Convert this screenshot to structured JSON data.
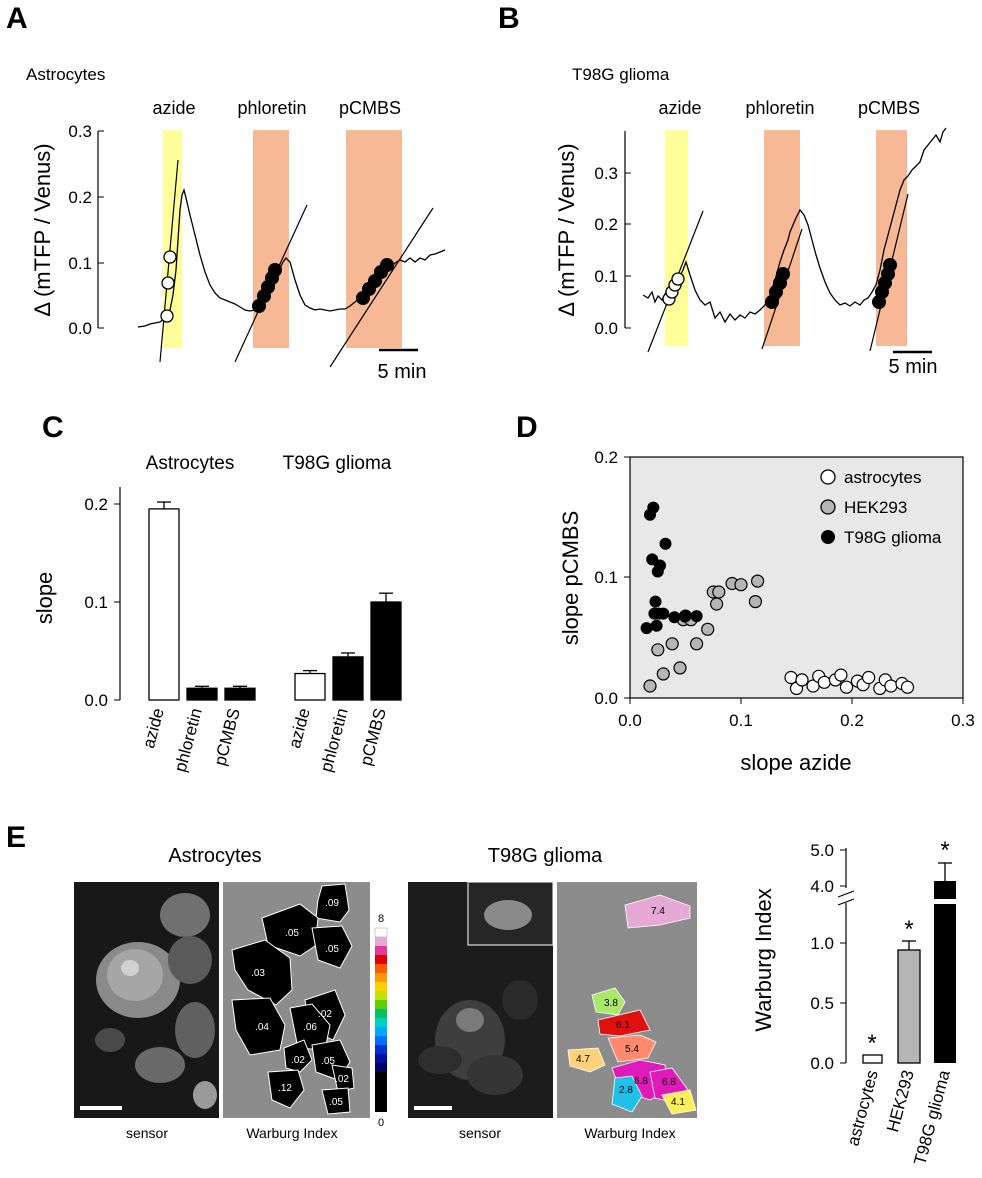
{
  "panels": {
    "A": {
      "letter": "A",
      "cell_label": "Astrocytes",
      "treatments": [
        "azide",
        "phloretin",
        "pCMBS"
      ],
      "ylabel": "Δ (mTFP / Venus)",
      "yticks": [
        "0.0",
        "0.1",
        "0.2",
        "0.3"
      ],
      "scalebar": "5 min"
    },
    "B": {
      "letter": "B",
      "cell_label": "T98G glioma",
      "treatments": [
        "azide",
        "phloretin",
        "pCMBS"
      ],
      "ylabel": "Δ (mTFP / Venus)",
      "yticks": [
        "0.0",
        "0.1",
        "0.2",
        "0.3"
      ],
      "scalebar": "5 min"
    },
    "C": {
      "letter": "C",
      "groups": [
        "Astrocytes",
        "T98G glioma"
      ],
      "ylabel": "slope",
      "yticks": [
        "0.0",
        "0.1",
        "0.2"
      ],
      "xlabels": [
        "azide",
        "phloretin",
        "pCMBS",
        "azide",
        "phloretin",
        "pCMBS"
      ]
    },
    "D": {
      "letter": "D",
      "xlabel": "slope azide",
      "ylabel": "slope pCMBS",
      "xticks": [
        "0.0",
        "0.1",
        "0.2",
        "0.3"
      ],
      "yticks": [
        "0.0",
        "0.1",
        "0.2"
      ],
      "legend": [
        "astrocytes",
        "HEK293",
        "T98G glioma"
      ]
    },
    "E": {
      "letter": "E",
      "astro_title": "Astrocytes",
      "glioma_title": "T98G glioma",
      "sensor_label": "sensor",
      "warburg_label": "Warburg Index",
      "colorbar_top": "8",
      "colorbar_bottom": "0",
      "astro_cell_values": [
        ".09",
        ".05",
        ".05",
        ".03",
        ".02",
        ".04",
        ".06",
        ".02",
        ".05",
        ".12",
        ".02",
        ".05"
      ],
      "glioma_cell_values": [
        "7.4",
        "3.8",
        "6.1",
        "5.4",
        "4.7",
        "6.8",
        "6.8",
        "2.8",
        "4.1"
      ],
      "bar_ylabel": "Warburg Index",
      "bar_yticks": [
        "0.0",
        "0.5",
        "1.0",
        "4.0",
        "5.0"
      ],
      "bar_xlabels": [
        "astrocytes",
        "HEK293",
        "T98G glioma"
      ],
      "significance": "*"
    }
  },
  "chart_data": [
    {
      "id": "A",
      "type": "line",
      "title": "Astrocytes",
      "ylabel": "Δ (mTFP / Venus)",
      "ylim": [
        0,
        0.3
      ],
      "time_min": [
        0,
        1,
        1.5,
        2,
        2.5,
        3,
        3.5,
        4,
        5,
        6,
        7,
        8,
        9,
        10,
        11,
        12,
        13,
        14,
        15,
        16,
        17,
        18,
        19,
        20,
        21,
        22,
        23,
        24
      ],
      "values": [
        0.005,
        0.008,
        0.015,
        0.05,
        0.12,
        0.2,
        0.21,
        0.17,
        0.1,
        0.06,
        0.04,
        0.03,
        0.03,
        0.05,
        0.09,
        0.12,
        0.1,
        0.04,
        0.035,
        0.03,
        0.035,
        0.045,
        0.065,
        0.085,
        0.095,
        0.1,
        0.105,
        0.12
      ],
      "points_azide": [
        0.02,
        0.07,
        0.11
      ],
      "points_phloretin": [
        0.03,
        0.05,
        0.07,
        0.09
      ],
      "points_pCMBS": [
        0.045,
        0.06,
        0.075,
        0.09
      ]
    },
    {
      "id": "B",
      "type": "line",
      "title": "T98G glioma",
      "ylabel": "Δ (mTFP / Venus)",
      "ylim": [
        0,
        0.35
      ],
      "time_min": [
        0,
        1,
        2,
        3,
        4,
        5,
        6,
        7,
        8,
        9,
        10,
        11,
        12,
        13,
        14,
        15,
        16,
        17,
        18,
        19,
        20,
        21,
        22,
        23,
        24
      ],
      "values": [
        0.065,
        0.05,
        0.07,
        0.06,
        0.1,
        0.08,
        0.03,
        0.01,
        0.02,
        0.04,
        0.05,
        0.1,
        0.2,
        0.2,
        0.15,
        0.09,
        0.04,
        0.03,
        0.02,
        0.06,
        0.13,
        0.27,
        0.29,
        0.33,
        0.37
      ],
      "points_azide": [
        0.06,
        0.08,
        0.1
      ],
      "points_phloretin": [
        0.05,
        0.08,
        0.11
      ],
      "points_pCMBS": [
        0.05,
        0.08,
        0.11,
        0.13
      ]
    },
    {
      "id": "C",
      "type": "bar",
      "ylabel": "slope",
      "ylim": [
        0,
        0.21
      ],
      "categories": [
        "azide",
        "phloretin",
        "pCMBS",
        "azide",
        "phloretin",
        "pCMBS"
      ],
      "groups": [
        "Astrocytes",
        "Astrocytes",
        "Astrocytes",
        "T98G glioma",
        "T98G glioma",
        "T98G glioma"
      ],
      "values": [
        0.195,
        0.012,
        0.012,
        0.027,
        0.044,
        0.1
      ],
      "errors": [
        0.007,
        0.002,
        0.002,
        0.003,
        0.004,
        0.009
      ],
      "fills": [
        "#ffffff",
        "#000000",
        "#000000",
        "#ffffff",
        "#000000",
        "#000000"
      ]
    },
    {
      "id": "D",
      "type": "scatter",
      "xlabel": "slope azide",
      "ylabel": "slope pCMBS",
      "xlim": [
        0,
        0.3
      ],
      "ylim": [
        0,
        0.2
      ],
      "series": [
        {
          "name": "astrocytes",
          "color": "#ffffff",
          "x": [
            0.145,
            0.15,
            0.155,
            0.165,
            0.17,
            0.175,
            0.185,
            0.19,
            0.195,
            0.205,
            0.21,
            0.215,
            0.225,
            0.23,
            0.235,
            0.245,
            0.25
          ],
          "y": [
            0.017,
            0.008,
            0.015,
            0.01,
            0.018,
            0.013,
            0.015,
            0.019,
            0.009,
            0.014,
            0.011,
            0.017,
            0.008,
            0.015,
            0.01,
            0.012,
            0.009
          ]
        },
        {
          "name": "HEK293",
          "color": "#b5b5b5",
          "x": [
            0.018,
            0.025,
            0.03,
            0.038,
            0.045,
            0.048,
            0.05,
            0.055,
            0.06,
            0.07,
            0.075,
            0.078,
            0.08,
            0.092,
            0.1,
            0.113,
            0.115
          ],
          "y": [
            0.01,
            0.04,
            0.02,
            0.045,
            0.025,
            0.065,
            0.068,
            0.065,
            0.045,
            0.057,
            0.088,
            0.078,
            0.088,
            0.095,
            0.094,
            0.08,
            0.097
          ]
        },
        {
          "name": "T98G glioma",
          "color": "#000000",
          "x": [
            0.015,
            0.018,
            0.02,
            0.021,
            0.022,
            0.023,
            0.024,
            0.025,
            0.026,
            0.027,
            0.03,
            0.032,
            0.04,
            0.05,
            0.06
          ],
          "y": [
            0.058,
            0.152,
            0.115,
            0.158,
            0.07,
            0.08,
            0.06,
            0.105,
            0.07,
            0.11,
            0.07,
            0.128,
            0.067,
            0.068,
            0.068
          ]
        }
      ],
      "legend_position": "top-right",
      "background": "#e8e8e8"
    },
    {
      "id": "E",
      "type": "bar",
      "ylabel": "Warburg Index",
      "categories": [
        "astrocytes",
        "HEK293",
        "T98G glioma"
      ],
      "values": [
        0.06,
        0.94,
        4.2
      ],
      "errors": [
        0.0,
        0.07,
        0.45
      ],
      "fills": [
        "#ffffff",
        "#b5b5b5",
        "#000000"
      ],
      "broken_axis": true
    }
  ]
}
